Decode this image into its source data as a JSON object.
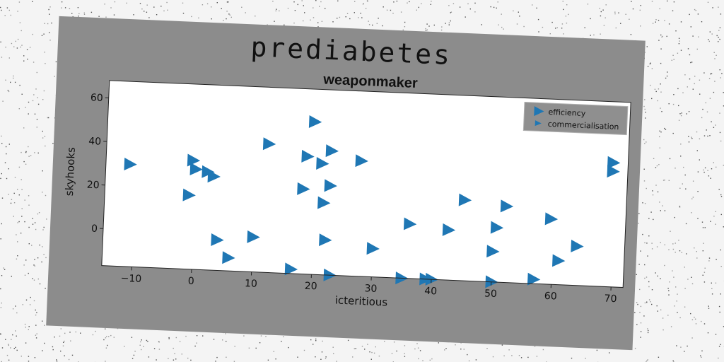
{
  "suptitle": "prediabetes",
  "chart_data": {
    "type": "scatter",
    "title": "weaponmaker",
    "xlabel": "icteritious",
    "ylabel": "skyhooks",
    "xlim": [
      -15,
      72
    ],
    "ylim": [
      -17,
      68
    ],
    "xticks": [
      -10,
      0,
      10,
      20,
      30,
      40,
      50,
      60,
      70
    ],
    "yticks": [
      0,
      20,
      40,
      60
    ],
    "grid": false,
    "legend_position": "top-right",
    "marker": "triangle-right",
    "series": [
      {
        "name": "efficiency",
        "color": "#1f77b4",
        "points": [
          [
            -11,
            30
          ],
          [
            -0.5,
            33
          ],
          [
            0,
            29
          ],
          [
            2,
            28
          ],
          [
            3,
            26
          ],
          [
            -1,
            17
          ],
          [
            4,
            -3
          ],
          [
            6,
            -11
          ],
          [
            10,
            -1
          ],
          [
            12,
            42
          ],
          [
            16.5,
            -15
          ],
          [
            18.5,
            37
          ],
          [
            18,
            22
          ],
          [
            19.5,
            53
          ],
          [
            21,
            34
          ],
          [
            21.5,
            16
          ],
          [
            22,
            -1
          ],
          [
            22.5,
            40
          ],
          [
            22.5,
            24
          ],
          [
            23,
            -18
          ],
          [
            27.5,
            36
          ],
          [
            30,
            -4
          ],
          [
            35,
            -18
          ],
          [
            36,
            8
          ],
          [
            39,
            -18
          ],
          [
            40,
            -21
          ],
          [
            42.5,
            6
          ],
          [
            45,
            20
          ],
          [
            50,
            -18
          ],
          [
            50,
            -3
          ],
          [
            50.5,
            8
          ],
          [
            52,
            18
          ],
          [
            57,
            -15
          ],
          [
            59.5,
            13
          ],
          [
            61,
            -6
          ],
          [
            64,
            1
          ],
          [
            69.5,
            40
          ],
          [
            69.5,
            36
          ]
        ]
      },
      {
        "name": "commercialisation",
        "color": "#1f77b4",
        "points": []
      }
    ]
  }
}
